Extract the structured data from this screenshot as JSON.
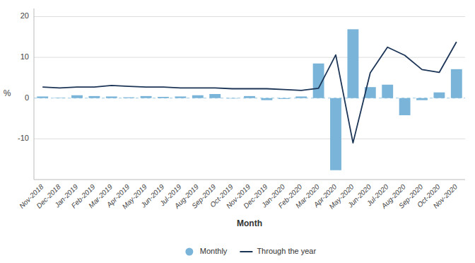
{
  "chart_data": {
    "type": "bar",
    "categories": [
      "Nov-2018",
      "Dec-2018",
      "Jan-2019",
      "Feb-2019",
      "Mar-2019",
      "Apr-2019",
      "May-2019",
      "Jun-2019",
      "Jul-2019",
      "Aug-2019",
      "Sep-2019",
      "Oct-2019",
      "Nov-2019",
      "Dec-2019",
      "Jan-2020",
      "Feb-2020",
      "Mar-2020",
      "Apr-2020",
      "May-2020",
      "Jun-2020",
      "Jul-2020",
      "Aug-2020",
      "Sep-2020",
      "Oct-2020",
      "Nov-2020"
    ],
    "series": [
      {
        "name": "Monthly",
        "type": "bar",
        "color": "#7ab4d8",
        "values": [
          0.4,
          0.1,
          0.7,
          0.5,
          0.4,
          0.2,
          0.5,
          0.3,
          0.4,
          0.7,
          1.0,
          -0.1,
          0.5,
          -0.5,
          -0.2,
          0.4,
          8.5,
          -17.7,
          16.9,
          2.7,
          3.3,
          -4.2,
          -0.5,
          1.4,
          7.1
        ]
      },
      {
        "name": "Through the year",
        "type": "line",
        "color": "#1c3557",
        "values": [
          2.7,
          2.5,
          2.7,
          2.7,
          3.1,
          2.9,
          2.7,
          2.7,
          2.5,
          2.5,
          2.5,
          2.3,
          2.3,
          2.3,
          2.1,
          1.9,
          2.4,
          10.6,
          -11.0,
          6.2,
          12.5,
          10.5,
          7.0,
          6.3,
          13.8
        ]
      }
    ],
    "xlabel": "Month",
    "ylabel": "%",
    "ylim": [
      -20,
      22
    ],
    "yticks": [
      -10,
      0,
      10,
      20
    ],
    "grid": true,
    "legend": "bottom"
  }
}
